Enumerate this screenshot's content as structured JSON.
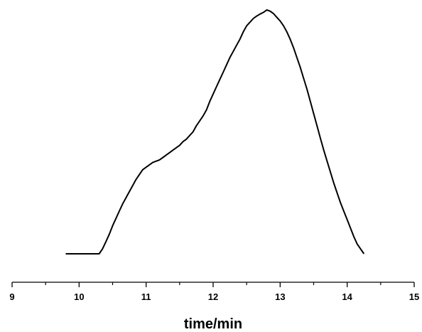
{
  "chart_data": {
    "type": "line",
    "title": "",
    "xlabel": "time/min",
    "ylabel": "",
    "xlim": [
      9,
      15
    ],
    "ylim": [
      0,
      100
    ],
    "x_ticks": [
      "9",
      "10",
      "11",
      "12",
      "13",
      "14",
      "15"
    ],
    "grid": false,
    "legend": "none",
    "line_color": "#000000",
    "series": [
      {
        "x": [
          9.8,
          10.3,
          10.35,
          10.4,
          10.45,
          10.5,
          10.55,
          10.6,
          10.65,
          10.7,
          10.75,
          10.8,
          10.85,
          10.9,
          10.95,
          11.0,
          11.05,
          11.1,
          11.15,
          11.2,
          11.25,
          11.3,
          11.35,
          11.4,
          11.45,
          11.5,
          11.55,
          11.6,
          11.65,
          11.7,
          11.75,
          11.8,
          11.85,
          11.9,
          11.95,
          12.0,
          12.05,
          12.1,
          12.15,
          12.2,
          12.25,
          12.3,
          12.35,
          12.4,
          12.45,
          12.5,
          12.55,
          12.6,
          12.65,
          12.7,
          12.75,
          12.8,
          12.85,
          12.9,
          12.95,
          13.0,
          13.05,
          13.1,
          13.15,
          13.2,
          13.25,
          13.3,
          13.35,
          13.4,
          13.45,
          13.5,
          13.55,
          13.6,
          13.65,
          13.7,
          13.75,
          13.8,
          13.85,
          13.9,
          13.95,
          14.0,
          14.05,
          14.1,
          14.15,
          14.2,
          14.25
        ],
        "y": [
          0,
          0,
          2,
          5,
          8,
          11.5,
          14.5,
          17.5,
          20.5,
          23,
          25.5,
          28,
          30.5,
          32.5,
          34.5,
          35.5,
          36.5,
          37.5,
          38,
          38.5,
          39.5,
          40.5,
          41.5,
          42.5,
          43.5,
          44.5,
          46,
          47,
          48.5,
          50,
          52.5,
          54.5,
          56.5,
          59,
          62.5,
          65.5,
          68.5,
          71.5,
          74.5,
          77.5,
          80.5,
          83,
          85.5,
          88,
          91,
          93.5,
          95,
          96.5,
          97.5,
          98.3,
          99,
          100,
          99.5,
          98.5,
          97,
          95.5,
          93.5,
          91,
          88,
          84.5,
          80.5,
          76.5,
          72,
          67.5,
          62.5,
          57.5,
          52.5,
          47.5,
          42.5,
          38,
          33.5,
          29,
          25,
          21,
          17.5,
          14,
          10.5,
          7,
          4,
          2,
          0
        ]
      }
    ]
  }
}
